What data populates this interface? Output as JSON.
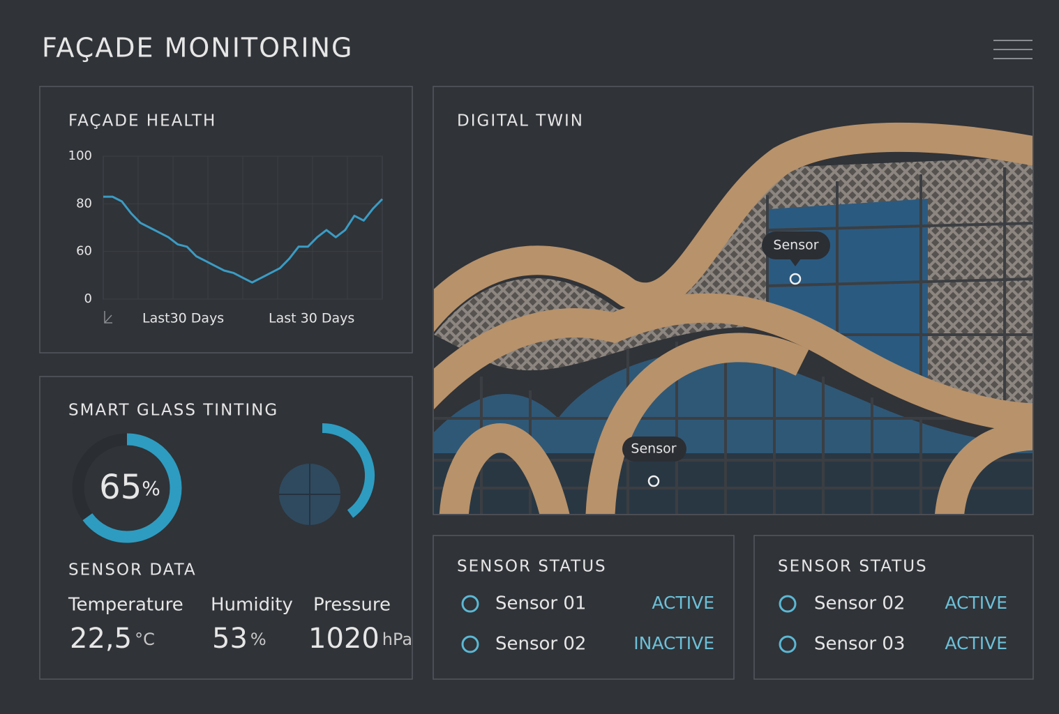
{
  "header": {
    "title": "FAÇADE MONITORING"
  },
  "health": {
    "title": "FAÇADE HEALTH",
    "chart_data": {
      "type": "line",
      "values": [
        83,
        83,
        81,
        76,
        72,
        70,
        68,
        66,
        63,
        62,
        58,
        56,
        54,
        52,
        51,
        49,
        47,
        49,
        51,
        53,
        57,
        62,
        62,
        66,
        69,
        66,
        69,
        75,
        73,
        78,
        82
      ],
      "color": "#3a9cc4",
      "ylim": [
        40,
        100
      ],
      "yticks": [
        100,
        80,
        60,
        {
          "value": 40,
          "label": "0"
        }
      ],
      "x_labels": [
        "Last30 Days",
        "Last 30 Days"
      ],
      "grid": true
    }
  },
  "tinting": {
    "title": "SMART GLASS TINTING",
    "color": "#2e9cc0",
    "gauges": [
      {
        "value": 65,
        "unit": "%"
      },
      {
        "value": 40
      }
    ]
  },
  "sensor_data": {
    "title": "SENSOR DATA",
    "readings": [
      {
        "name": "Temperature",
        "value": 22.5,
        "value_label": "22,5",
        "unit": "°C"
      },
      {
        "name": "Humidity",
        "value": 53,
        "unit": "%"
      },
      {
        "name": "Pressure",
        "value": 1020,
        "unit": "hPa"
      }
    ]
  },
  "digital_twin": {
    "title": "DIGITAL TWIN",
    "tags": [
      "Sensor",
      "Sensor"
    ]
  },
  "status_panels": [
    {
      "title": "SENSOR STATUS",
      "sensors": [
        {
          "name": "Sensor 01",
          "status": "ACTIVE"
        },
        {
          "name": "Sensor 02",
          "status": "INACTIVE"
        }
      ]
    },
    {
      "title": "SENSOR STATUS",
      "sensors": [
        {
          "name": "Sensor 02",
          "status": "ACTIVE"
        },
        {
          "name": "Sensor 03",
          "status": "ACTIVE"
        }
      ]
    }
  ]
}
